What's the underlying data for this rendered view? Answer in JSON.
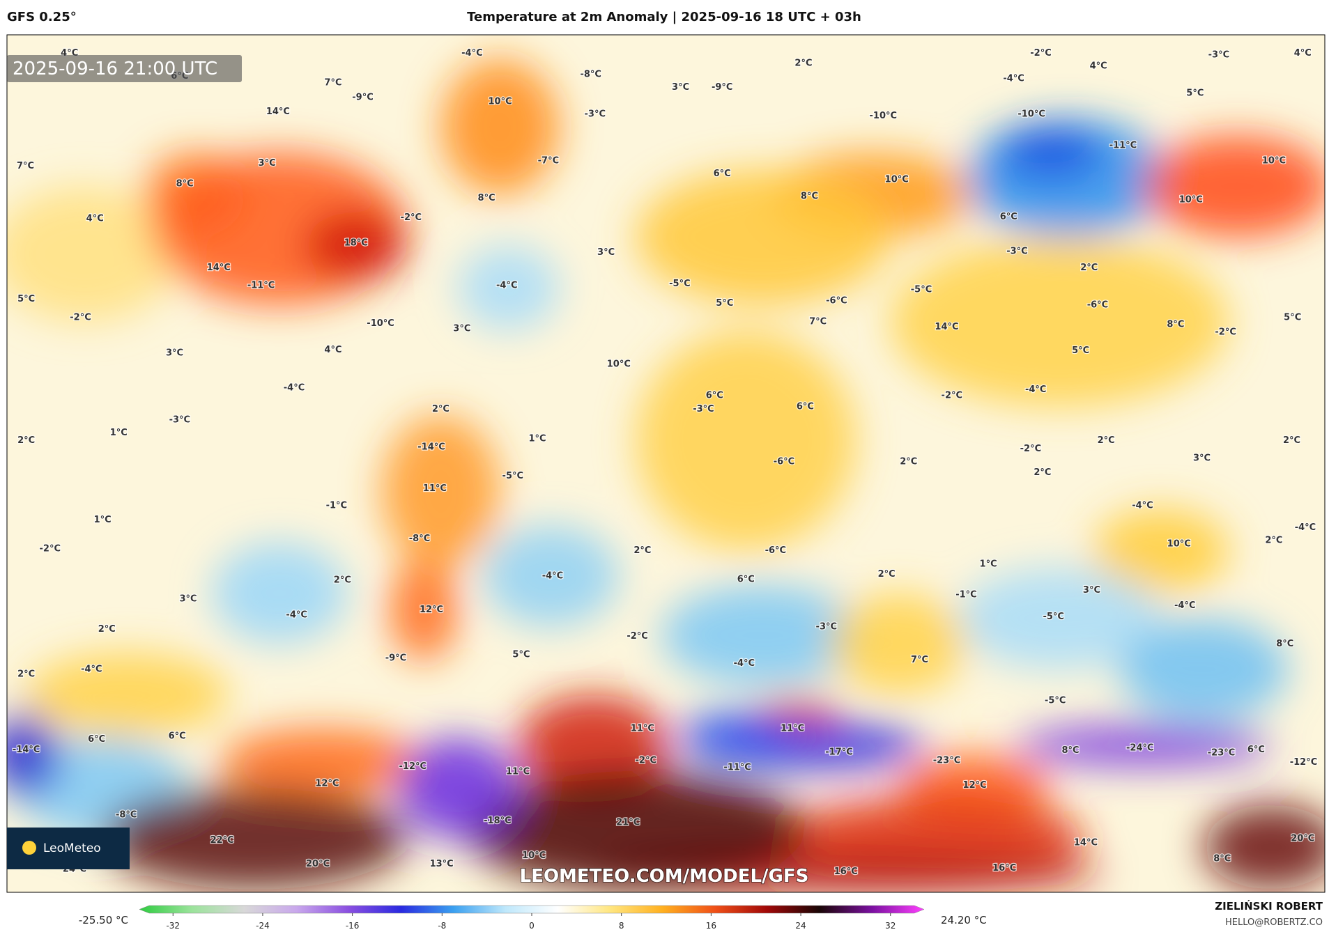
{
  "header": {
    "model": "GFS 0.25°",
    "title": "Temperature at 2m Anomaly | 2025-09-16 18 UTC + 03h"
  },
  "map": {
    "timestamp": "2025-09-16 21:00 UTC",
    "watermark": "LEOMETEO.COM/MODEL/GFS",
    "logo": "LeoMeteo",
    "labels": [
      "4°C",
      "-4°C",
      "2°C",
      "-2°C",
      "4°C",
      "-3°C",
      "4°C",
      "6°C",
      "7°C",
      "-8°C",
      "3°C",
      "-9°C",
      "-4°C",
      "5°C",
      "-9°C",
      "10°C",
      "-3°C",
      "-10°C",
      "-10°C",
      "14°C",
      "-11°C",
      "10°C",
      "7°C",
      "3°C",
      "-7°C",
      "6°C",
      "10°C",
      "8°C",
      "8°C",
      "8°C",
      "10°C",
      "4°C",
      "-2°C",
      "6°C",
      "18°C",
      "3°C",
      "-3°C",
      "14°C",
      "-4°C",
      "2°C",
      "-11°C",
      "-5°C",
      "-5°C",
      "5°C",
      "5°C",
      "-6°C",
      "-6°C",
      "-2°C",
      "-10°C",
      "3°C",
      "7°C",
      "14°C",
      "8°C",
      "-2°C",
      "5°C",
      "3°C",
      "4°C",
      "5°C",
      "10°C",
      "-4°C",
      "6°C",
      "-2°C",
      "-4°C",
      "2°C",
      "-3°C",
      "6°C",
      "-3°C",
      "1°C",
      "2°C",
      "-14°C",
      "1°C",
      "2°C",
      "2°C",
      "-2°C",
      "2°C",
      "-6°C",
      "3°C",
      "-5°C",
      "2°C",
      "11°C",
      "-1°C",
      "-4°C",
      "1°C",
      "-8°C",
      "10°C",
      "2°C",
      "-4°C",
      "-2°C",
      "2°C",
      "-6°C",
      "1°C",
      "-4°C",
      "2°C",
      "2°C",
      "6°C",
      "3°C",
      "-1°C",
      "3°C",
      "12°C",
      "-4°C",
      "-4°C",
      "-5°C",
      "2°C",
      "-3°C",
      "-2°C",
      "5°C",
      "7°C",
      "-4°C",
      "8°C",
      "-9°C",
      "-4°C",
      "2°C",
      "-5°C",
      "11°C",
      "11°C",
      "6°C",
      "6°C",
      "-14°C",
      "-17°C",
      "8°C",
      "-24°C",
      "-23°C",
      "6°C",
      "-2°C",
      "-11°C",
      "-23°C",
      "-12°C",
      "12°C",
      "-12°C",
      "11°C",
      "12°C",
      "-8°C",
      "-18°C",
      "21°C",
      "22°C",
      "14°C",
      "20°C",
      "10°C",
      "8°C",
      "24°C",
      "20°C",
      "13°C",
      "16°C",
      "16°C"
    ]
  },
  "colorbar": {
    "min_label": "-25.50 °C",
    "max_label": "24.20 °C",
    "range": [
      -35,
      35
    ],
    "ticks": [
      -32,
      -24,
      -16,
      -8,
      0,
      8,
      16,
      24,
      32
    ],
    "colors": [
      "#2ecc40",
      "#9be39b",
      "#d8d8d8",
      "#c9a8ec",
      "#8a4fe0",
      "#2a2ae0",
      "#3aa0f0",
      "#bfe8fb",
      "#ffffff",
      "#ffe680",
      "#ffb020",
      "#f05018",
      "#a00808",
      "#1a0606",
      "#7a10a0",
      "#ff40ff"
    ]
  },
  "credits": {
    "author": "ZIELIŃSKI ROBERT",
    "email": "HELLO@ROBERTZ.CO"
  }
}
